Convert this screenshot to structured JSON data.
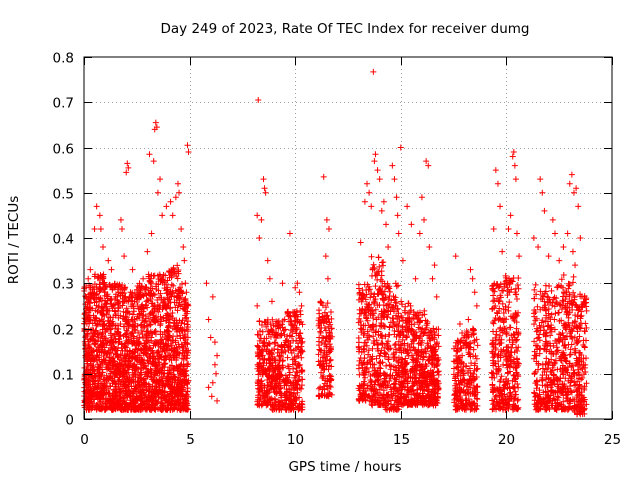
{
  "chart_data": {
    "type": "scatter",
    "title": "Day 249 of 2023, Rate Of TEC Index for receiver dumg",
    "xlabel": "GPS time / hours",
    "ylabel": "ROTI / TECUs",
    "xlim": [
      0,
      25
    ],
    "ylim": [
      0,
      0.8
    ],
    "xticks": [
      0,
      5,
      10,
      15,
      20,
      25
    ],
    "yticks": [
      0,
      0.1,
      0.2,
      0.3,
      0.4,
      0.5,
      0.6,
      0.7,
      0.8
    ],
    "grid": true,
    "marker": "+",
    "color": "#ff0000",
    "series": [
      {
        "points": [
          [
            8.25,
            0.705
          ],
          [
            13.7,
            0.767
          ],
          [
            3.4,
            0.655
          ],
          [
            3.45,
            0.645
          ],
          [
            3.35,
            0.64
          ],
          [
            4.9,
            0.605
          ],
          [
            4.95,
            0.59
          ],
          [
            2.05,
            0.565
          ],
          [
            2.1,
            0.555
          ],
          [
            2.0,
            0.545
          ],
          [
            3.1,
            0.585
          ],
          [
            3.3,
            0.57
          ],
          [
            4.45,
            0.52
          ],
          [
            4.5,
            0.5
          ],
          [
            4.35,
            0.49
          ],
          [
            3.6,
            0.53
          ],
          [
            3.5,
            0.5
          ],
          [
            0.6,
            0.47
          ],
          [
            0.75,
            0.45
          ],
          [
            0.8,
            0.42
          ],
          [
            0.9,
            0.38
          ],
          [
            0.5,
            0.42
          ],
          [
            0.3,
            0.33
          ],
          [
            0.2,
            0.31
          ],
          [
            1.15,
            0.35
          ],
          [
            1.3,
            0.33
          ],
          [
            1.8,
            0.42
          ],
          [
            1.75,
            0.44
          ],
          [
            1.9,
            0.36
          ],
          [
            2.3,
            0.33
          ],
          [
            2.6,
            0.29
          ],
          [
            2.8,
            0.31
          ],
          [
            3.0,
            0.37
          ],
          [
            3.2,
            0.41
          ],
          [
            3.7,
            0.45
          ],
          [
            3.9,
            0.47
          ],
          [
            4.1,
            0.48
          ],
          [
            4.2,
            0.45
          ],
          [
            4.6,
            0.42
          ],
          [
            4.7,
            0.38
          ],
          [
            4.75,
            0.35
          ],
          [
            0.1,
            0.27
          ],
          [
            0.4,
            0.28
          ],
          [
            1.0,
            0.28
          ],
          [
            1.5,
            0.27
          ],
          [
            2.2,
            0.28
          ],
          [
            4.8,
            0.3
          ],
          [
            5.8,
            0.3
          ],
          [
            6.1,
            0.27
          ],
          [
            5.9,
            0.22
          ],
          [
            6.2,
            0.17
          ],
          [
            6.0,
            0.18
          ],
          [
            6.3,
            0.14
          ],
          [
            6.25,
            0.1
          ],
          [
            6.1,
            0.08
          ],
          [
            5.9,
            0.07
          ],
          [
            6.05,
            0.05
          ],
          [
            6.3,
            0.04
          ],
          [
            6.2,
            0.12
          ],
          [
            8.2,
            0.45
          ],
          [
            8.5,
            0.53
          ],
          [
            8.55,
            0.51
          ],
          [
            8.6,
            0.5
          ],
          [
            8.4,
            0.44
          ],
          [
            8.3,
            0.4
          ],
          [
            8.7,
            0.35
          ],
          [
            8.8,
            0.31
          ],
          [
            8.9,
            0.26
          ],
          [
            9.4,
            0.3
          ],
          [
            9.75,
            0.41
          ],
          [
            10.0,
            0.29
          ],
          [
            10.1,
            0.3
          ],
          [
            10.2,
            0.28
          ],
          [
            10.3,
            0.25
          ],
          [
            9.5,
            0.22
          ],
          [
            9.2,
            0.2
          ],
          [
            8.2,
            0.25
          ],
          [
            11.35,
            0.535
          ],
          [
            11.5,
            0.44
          ],
          [
            11.6,
            0.42
          ],
          [
            11.45,
            0.36
          ],
          [
            11.55,
            0.31
          ],
          [
            11.2,
            0.26
          ],
          [
            11.3,
            0.22
          ],
          [
            13.1,
            0.39
          ],
          [
            13.3,
            0.48
          ],
          [
            13.4,
            0.52
          ],
          [
            13.5,
            0.5
          ],
          [
            13.6,
            0.47
          ],
          [
            13.75,
            0.57
          ],
          [
            13.8,
            0.585
          ],
          [
            13.9,
            0.55
          ],
          [
            14.0,
            0.53
          ],
          [
            14.1,
            0.46
          ],
          [
            14.2,
            0.48
          ],
          [
            14.3,
            0.43
          ],
          [
            14.4,
            0.38
          ],
          [
            14.6,
            0.56
          ],
          [
            14.7,
            0.53
          ],
          [
            14.8,
            0.49
          ],
          [
            14.85,
            0.45
          ],
          [
            14.9,
            0.41
          ],
          [
            15.0,
            0.6
          ],
          [
            15.1,
            0.35
          ],
          [
            15.3,
            0.47
          ],
          [
            15.5,
            0.43
          ],
          [
            15.7,
            0.31
          ],
          [
            15.9,
            0.41
          ],
          [
            16.0,
            0.49
          ],
          [
            16.1,
            0.44
          ],
          [
            16.2,
            0.57
          ],
          [
            16.3,
            0.56
          ],
          [
            16.35,
            0.38
          ],
          [
            16.5,
            0.31
          ],
          [
            16.6,
            0.34
          ],
          [
            16.7,
            0.27
          ],
          [
            17.6,
            0.36
          ],
          [
            17.8,
            0.21
          ],
          [
            17.9,
            0.19
          ],
          [
            18.3,
            0.33
          ],
          [
            18.4,
            0.31
          ],
          [
            18.5,
            0.28
          ],
          [
            18.6,
            0.25
          ],
          [
            18.2,
            0.22
          ],
          [
            19.4,
            0.42
          ],
          [
            19.5,
            0.55
          ],
          [
            19.6,
            0.52
          ],
          [
            19.7,
            0.47
          ],
          [
            19.8,
            0.37
          ],
          [
            19.9,
            0.3
          ],
          [
            20.3,
            0.58
          ],
          [
            20.35,
            0.59
          ],
          [
            20.4,
            0.56
          ],
          [
            20.45,
            0.53
          ],
          [
            20.2,
            0.45
          ],
          [
            20.1,
            0.42
          ],
          [
            20.5,
            0.41
          ],
          [
            20.6,
            0.36
          ],
          [
            20.15,
            0.28
          ],
          [
            21.3,
            0.4
          ],
          [
            21.5,
            0.38
          ],
          [
            21.6,
            0.53
          ],
          [
            21.7,
            0.5
          ],
          [
            21.8,
            0.46
          ],
          [
            22.0,
            0.36
          ],
          [
            22.2,
            0.44
          ],
          [
            22.3,
            0.41
          ],
          [
            22.5,
            0.35
          ],
          [
            22.7,
            0.38
          ],
          [
            22.9,
            0.41
          ],
          [
            23.0,
            0.52
          ],
          [
            23.1,
            0.54
          ],
          [
            23.2,
            0.5
          ],
          [
            23.3,
            0.51
          ],
          [
            23.4,
            0.47
          ],
          [
            23.5,
            0.4
          ],
          [
            23.15,
            0.37
          ],
          [
            23.25,
            0.34
          ]
        ],
        "bands": [
          {
            "x": [
              0.0,
              0.5
            ],
            "y": [
              0.02,
              0.3
            ],
            "n": 260
          },
          {
            "x": [
              0.5,
              1.0
            ],
            "y": [
              0.02,
              0.32
            ],
            "n": 240
          },
          {
            "x": [
              1.0,
              1.5
            ],
            "y": [
              0.02,
              0.3
            ],
            "n": 220
          },
          {
            "x": [
              1.5,
              2.0
            ],
            "y": [
              0.02,
              0.3
            ],
            "n": 230
          },
          {
            "x": [
              2.0,
              2.5
            ],
            "y": [
              0.02,
              0.28
            ],
            "n": 220
          },
          {
            "x": [
              2.5,
              3.0
            ],
            "y": [
              0.02,
              0.3
            ],
            "n": 220
          },
          {
            "x": [
              3.0,
              3.5
            ],
            "y": [
              0.02,
              0.32
            ],
            "n": 230
          },
          {
            "x": [
              3.5,
              4.0
            ],
            "y": [
              0.02,
              0.32
            ],
            "n": 230
          },
          {
            "x": [
              4.0,
              4.5
            ],
            "y": [
              0.02,
              0.34
            ],
            "n": 230
          },
          {
            "x": [
              4.5,
              4.95
            ],
            "y": [
              0.02,
              0.3
            ],
            "n": 200
          },
          {
            "x": [
              8.2,
              8.9
            ],
            "y": [
              0.03,
              0.22
            ],
            "n": 190
          },
          {
            "x": [
              8.9,
              9.6
            ],
            "y": [
              0.02,
              0.22
            ],
            "n": 200
          },
          {
            "x": [
              9.6,
              10.35
            ],
            "y": [
              0.02,
              0.24
            ],
            "n": 200
          },
          {
            "x": [
              11.1,
              11.75
            ],
            "y": [
              0.05,
              0.26
            ],
            "n": 150
          },
          {
            "x": [
              13.0,
              13.6
            ],
            "y": [
              0.04,
              0.3
            ],
            "n": 160
          },
          {
            "x": [
              13.6,
              14.2
            ],
            "y": [
              0.03,
              0.36
            ],
            "n": 190
          },
          {
            "x": [
              14.2,
              14.9
            ],
            "y": [
              0.02,
              0.3
            ],
            "n": 200
          },
          {
            "x": [
              14.9,
              15.6
            ],
            "y": [
              0.03,
              0.26
            ],
            "n": 220
          },
          {
            "x": [
              15.6,
              16.3
            ],
            "y": [
              0.03,
              0.24
            ],
            "n": 210
          },
          {
            "x": [
              16.3,
              16.8
            ],
            "y": [
              0.03,
              0.2
            ],
            "n": 160
          },
          {
            "x": [
              17.5,
              18.0
            ],
            "y": [
              0.02,
              0.18
            ],
            "n": 120
          },
          {
            "x": [
              18.0,
              18.65
            ],
            "y": [
              0.02,
              0.2
            ],
            "n": 130
          },
          {
            "x": [
              19.3,
              19.9
            ],
            "y": [
              0.02,
              0.3
            ],
            "n": 170
          },
          {
            "x": [
              19.9,
              20.6
            ],
            "y": [
              0.02,
              0.32
            ],
            "n": 190
          },
          {
            "x": [
              21.3,
              21.9
            ],
            "y": [
              0.02,
              0.3
            ],
            "n": 150
          },
          {
            "x": [
              21.9,
              22.6
            ],
            "y": [
              0.02,
              0.3
            ],
            "n": 170
          },
          {
            "x": [
              22.6,
              23.2
            ],
            "y": [
              0.02,
              0.32
            ],
            "n": 180
          },
          {
            "x": [
              23.2,
              23.8
            ],
            "y": [
              0.01,
              0.28
            ],
            "n": 170
          }
        ]
      }
    ]
  }
}
